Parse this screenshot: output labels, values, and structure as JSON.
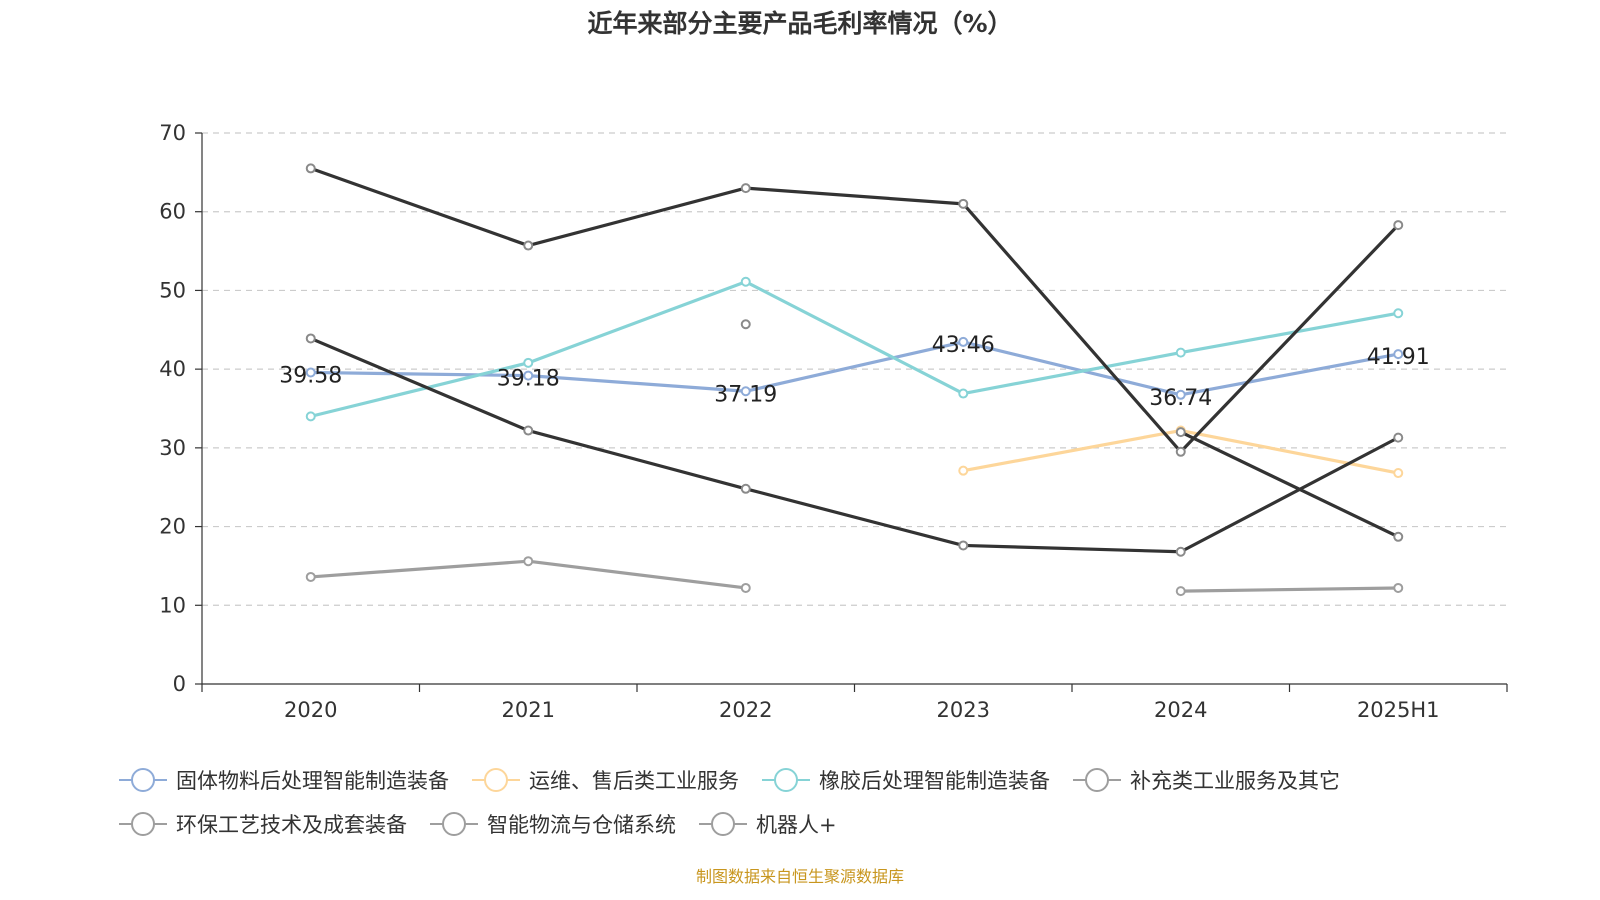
{
  "chart_data": {
    "type": "line",
    "title": "近年来部分主要产品毛利率情况（%）",
    "categories": [
      "2020",
      "2021",
      "2022",
      "2023",
      "2024",
      "2025H1"
    ],
    "ylim": [
      0,
      70
    ],
    "yticks": [
      0,
      10,
      20,
      30,
      40,
      50,
      60,
      70
    ],
    "grid": true,
    "legend_position": "bottom",
    "series": [
      {
        "name": "固体物料后处理智能制造装备",
        "color": "#8eabd8",
        "values": [
          39.58,
          39.18,
          37.19,
          43.46,
          36.74,
          41.91
        ],
        "labeled": true
      },
      {
        "name": "运维、售后类工业服务",
        "color": "#fdd69a",
        "values": [
          null,
          null,
          null,
          27.1,
          32.2,
          26.8
        ],
        "labeled": false
      },
      {
        "name": "橡胶后处理智能制造装备",
        "color": "#86d3d6",
        "values": [
          34.0,
          40.8,
          51.1,
          36.9,
          42.1,
          47.1
        ],
        "labeled": false
      },
      {
        "name": "补充类工业服务及其它",
        "color": "#9e9e9e",
        "values": [
          13.6,
          15.6,
          12.2,
          null,
          11.8,
          12.2
        ],
        "labeled": false
      },
      {
        "name": "环保工艺技术及成套装备",
        "color": "#333333",
        "values": [
          43.9,
          32.2,
          24.8,
          17.6,
          16.8,
          31.3
        ],
        "labeled": false
      },
      {
        "name": "智能物流与仓储系统",
        "color": "#333333",
        "values": [
          65.5,
          55.7,
          63.0,
          61.0,
          29.5,
          58.3
        ],
        "labeled": false
      },
      {
        "name": "机器人+",
        "color": "#333333",
        "values": [
          null,
          null,
          45.7,
          null,
          32.0,
          18.7
        ],
        "labeled": false
      }
    ]
  },
  "source_text": "制图数据来自恒生聚源数据库"
}
